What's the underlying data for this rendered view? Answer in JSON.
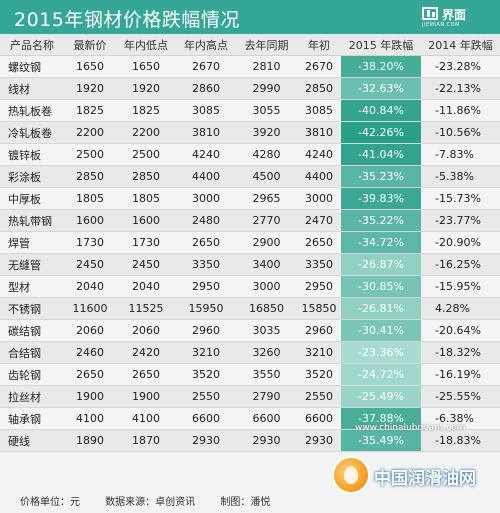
{
  "header": {
    "title": "2015年钢材价格跌幅情况",
    "logo_name": "界面",
    "logo_sub": "JIEMIAN.COM"
  },
  "colors": {
    "header": "#35a797",
    "pct_min": "#a8dcd2",
    "pct_max": "#2aa088"
  },
  "chart_data": {
    "type": "table",
    "title": "2015年钢材价格跌幅情况",
    "columns": [
      "产品名称",
      "最新价",
      "年内低点",
      "年内高点",
      "去年同期",
      "年初",
      "2015 年跌幅",
      "2014 年跌幅"
    ],
    "rows": [
      {
        "name": "螺纹钢",
        "latest": "1650",
        "low": "1650",
        "high": "2670",
        "last_year": "2810",
        "year_start": "2670",
        "pct2015": "-38.20%",
        "pct2014": "-23.28%"
      },
      {
        "name": "线材",
        "latest": "1920",
        "low": "1920",
        "high": "2860",
        "last_year": "2990",
        "year_start": "2850",
        "pct2015": "-32.63%",
        "pct2014": "-22.13%"
      },
      {
        "name": "热轧板卷",
        "latest": "1825",
        "low": "1825",
        "high": "3085",
        "last_year": "3055",
        "year_start": "3085",
        "pct2015": "-40.84%",
        "pct2014": "-11.86%"
      },
      {
        "name": "冷轧板卷",
        "latest": "2200",
        "low": "2200",
        "high": "3810",
        "last_year": "3920",
        "year_start": "3810",
        "pct2015": "-42.26%",
        "pct2014": "-10.56%"
      },
      {
        "name": "镀锌板",
        "latest": "2500",
        "low": "2500",
        "high": "4240",
        "last_year": "4280",
        "year_start": "4240",
        "pct2015": "-41.04%",
        "pct2014": "-7.83%"
      },
      {
        "name": "彩涂板",
        "latest": "2850",
        "low": "2850",
        "high": "4400",
        "last_year": "4500",
        "year_start": "4400",
        "pct2015": "-35.23%",
        "pct2014": "-5.38%"
      },
      {
        "name": "中厚板",
        "latest": "1805",
        "low": "1805",
        "high": "3000",
        "last_year": "2965",
        "year_start": "3000",
        "pct2015": "-39.83%",
        "pct2014": "-15.73%"
      },
      {
        "name": "热轧带钢",
        "latest": "1600",
        "low": "1600",
        "high": "2480",
        "last_year": "2770",
        "year_start": "2470",
        "pct2015": "-35.22%",
        "pct2014": "-23.77%"
      },
      {
        "name": "焊管",
        "latest": "1730",
        "low": "1730",
        "high": "2650",
        "last_year": "2900",
        "year_start": "2650",
        "pct2015": "-34.72%",
        "pct2014": "-20.90%"
      },
      {
        "name": "无缝管",
        "latest": "2450",
        "low": "2450",
        "high": "3350",
        "last_year": "3400",
        "year_start": "3350",
        "pct2015": "-26.87%",
        "pct2014": "-16.25%"
      },
      {
        "name": "型材",
        "latest": "2040",
        "low": "2040",
        "high": "2950",
        "last_year": "3000",
        "year_start": "2950",
        "pct2015": "-30.85%",
        "pct2014": "-15.95%"
      },
      {
        "name": "不锈钢",
        "latest": "11600",
        "low": "11525",
        "high": "15950",
        "last_year": "16850",
        "year_start": "15850",
        "pct2015": "-26.81%",
        "pct2014": "4.28%"
      },
      {
        "name": "碳结钢",
        "latest": "2060",
        "low": "2060",
        "high": "2960",
        "last_year": "3035",
        "year_start": "2960",
        "pct2015": "-30.41%",
        "pct2014": "-20.64%"
      },
      {
        "name": "合结钢",
        "latest": "2460",
        "low": "2420",
        "high": "3210",
        "last_year": "3260",
        "year_start": "3210",
        "pct2015": "-23.36%",
        "pct2014": "-18.32%"
      },
      {
        "name": "齿轮钢",
        "latest": "2650",
        "low": "2650",
        "high": "3520",
        "last_year": "3550",
        "year_start": "3520",
        "pct2015": "-24.72%",
        "pct2014": "-16.19%"
      },
      {
        "name": "拉丝材",
        "latest": "1900",
        "low": "1900",
        "high": "2550",
        "last_year": "2790",
        "year_start": "2550",
        "pct2015": "-25.49%",
        "pct2014": "-25.55%"
      },
      {
        "name": "轴承钢",
        "latest": "4100",
        "low": "4100",
        "high": "6600",
        "last_year": "6600",
        "year_start": "6600",
        "pct2015": "-37.88%",
        "pct2014": "-6.38%"
      },
      {
        "name": "硬线",
        "latest": "1890",
        "low": "1870",
        "high": "2930",
        "last_year": "2930",
        "year_start": "2930",
        "pct2015": "-35.49%",
        "pct2014": "-18.83%"
      }
    ]
  },
  "footer": {
    "unit": "价格单位：元",
    "source": "数据来源：卓创资讯",
    "author": "制图：潘悦"
  },
  "watermark": {
    "url": "www.chinalubricant.com",
    "brand": "中国润滑油网"
  }
}
